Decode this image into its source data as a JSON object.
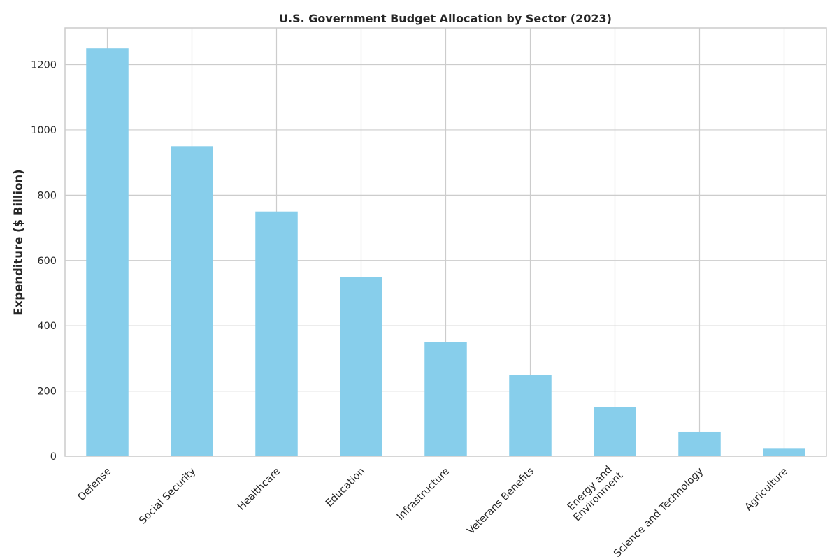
{
  "chart_data": {
    "type": "bar",
    "title": "U.S. Government Budget Allocation by Sector (2023)",
    "xlabel": "",
    "ylabel": "Expenditure ($ Billion)",
    "categories": [
      "Defense",
      "Social Security",
      "Healthcare",
      "Education",
      "Infrastructure",
      "Veterans Benefits",
      "Energy and\nEnvironment",
      "Science and Technology",
      "Agriculture"
    ],
    "values": [
      1250,
      950,
      750,
      550,
      350,
      250,
      150,
      75,
      25
    ],
    "ylim": [
      0,
      1312.5
    ],
    "yticks": [
      0,
      200,
      400,
      600,
      800,
      1000,
      1200
    ],
    "grid": true,
    "bar_color": "#87ceeb",
    "grid_color": "#cccccc",
    "text_color": "#262626"
  }
}
